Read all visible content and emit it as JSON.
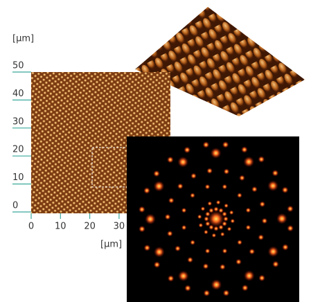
{
  "afm_figure": {
    "y_axis_label": "[μm]",
    "x_axis_label": "[μm]",
    "yticks": [
      0,
      10,
      20,
      30,
      40,
      50
    ],
    "xticks": [
      0,
      10,
      20,
      30
    ]
  }
}
